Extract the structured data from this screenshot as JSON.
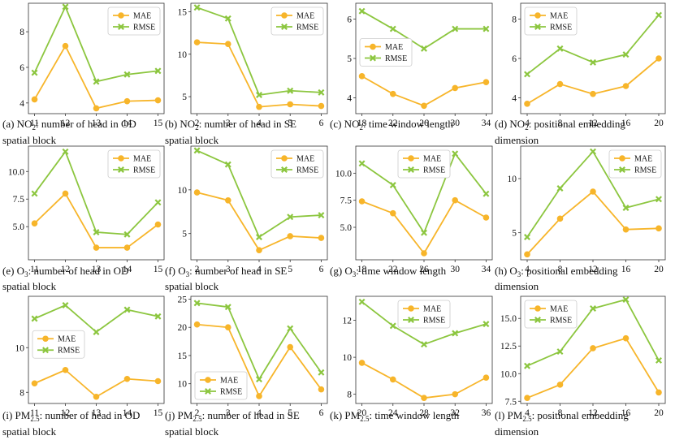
{
  "colors": {
    "mae": "#f7b52a",
    "rmse": "#8cc63f",
    "axis": "#333333",
    "grid": "#dddddd"
  },
  "chart_data": [
    {
      "id": "a",
      "type": "line",
      "x": [
        11,
        12,
        13,
        14,
        15
      ],
      "xticks": [
        11,
        12,
        13,
        14,
        15
      ],
      "ylim": [
        3.4,
        9.6
      ],
      "yticks": [
        4,
        6,
        8
      ],
      "ytick_labels": [
        "4",
        "6",
        "8"
      ],
      "legend": "top-right",
      "series": [
        {
          "name": "MAE",
          "values": [
            4.2,
            7.2,
            3.7,
            4.1,
            4.15
          ]
        },
        {
          "name": "RMSE",
          "values": [
            5.7,
            9.4,
            5.2,
            5.6,
            5.8
          ]
        }
      ],
      "caption": [
        "(a) NO",
        "2",
        ": number of head in OD",
        "spatial block"
      ]
    },
    {
      "id": "b",
      "type": "line",
      "x": [
        2,
        3,
        4,
        5,
        6
      ],
      "xticks": [
        2,
        3,
        4,
        5,
        6
      ],
      "ylim": [
        3.0,
        16.0
      ],
      "yticks": [
        5,
        10,
        15
      ],
      "ytick_labels": [
        "5",
        "10",
        "15"
      ],
      "legend": "top-right",
      "series": [
        {
          "name": "MAE",
          "values": [
            11.4,
            11.2,
            3.8,
            4.1,
            3.9
          ]
        },
        {
          "name": "RMSE",
          "values": [
            15.5,
            14.2,
            5.2,
            5.7,
            5.5
          ]
        }
      ],
      "caption": [
        "(b) NO",
        "2",
        ": number of head in SE",
        "spatial block"
      ]
    },
    {
      "id": "c",
      "type": "line",
      "x": [
        18,
        22,
        26,
        30,
        34
      ],
      "xticks": [
        18,
        22,
        26,
        30,
        34
      ],
      "ylim": [
        3.6,
        6.4
      ],
      "yticks": [
        4,
        5,
        6
      ],
      "ytick_labels": [
        "4",
        "5",
        "6"
      ],
      "legend": "middle-left",
      "series": [
        {
          "name": "MAE",
          "values": [
            4.55,
            4.1,
            3.8,
            4.25,
            4.4
          ]
        },
        {
          "name": "RMSE",
          "values": [
            6.2,
            5.75,
            5.25,
            5.75,
            5.75
          ]
        }
      ],
      "caption": [
        "(c) NO",
        "2",
        ": time window length",
        ""
      ]
    },
    {
      "id": "d",
      "type": "line",
      "x": [
        4,
        8,
        12,
        16,
        20
      ],
      "xticks": [
        4,
        8,
        12,
        16,
        20
      ],
      "ylim": [
        3.2,
        8.8
      ],
      "yticks": [
        4,
        6,
        8
      ],
      "ytick_labels": [
        "4",
        "6",
        "8"
      ],
      "legend": "top-left",
      "series": [
        {
          "name": "MAE",
          "values": [
            3.7,
            4.7,
            4.2,
            4.6,
            6.0
          ]
        },
        {
          "name": "RMSE",
          "values": [
            5.2,
            6.5,
            5.8,
            6.2,
            8.2
          ]
        }
      ],
      "caption": [
        "(d) NO",
        "2",
        ": positional embedding",
        "dimension"
      ]
    },
    {
      "id": "e",
      "type": "line",
      "x": [
        11,
        12,
        13,
        14,
        15
      ],
      "xticks": [
        11,
        12,
        13,
        14,
        15
      ],
      "ylim": [
        2.0,
        12.3
      ],
      "yticks": [
        5.0,
        7.5,
        10.0
      ],
      "ytick_labels": [
        "5.0",
        "7.5",
        "10.0"
      ],
      "legend": "top-right",
      "series": [
        {
          "name": "MAE",
          "values": [
            5.3,
            8.0,
            3.1,
            3.1,
            5.2
          ]
        },
        {
          "name": "RMSE",
          "values": [
            8.0,
            11.8,
            4.5,
            4.3,
            7.2
          ]
        }
      ],
      "caption": [
        "(e) O",
        "3",
        ": number of head in OD",
        "spatial block"
      ]
    },
    {
      "id": "f",
      "type": "line",
      "x": [
        2,
        3,
        4,
        5,
        6
      ],
      "xticks": [
        2,
        3,
        4,
        5,
        6
      ],
      "ylim": [
        2.0,
        15.0
      ],
      "yticks": [
        5,
        10
      ],
      "ytick_labels": [
        "5",
        "10"
      ],
      "legend": "top-right",
      "series": [
        {
          "name": "MAE",
          "values": [
            9.7,
            8.8,
            3.1,
            4.7,
            4.5
          ]
        },
        {
          "name": "RMSE",
          "values": [
            14.5,
            12.9,
            4.6,
            6.9,
            7.1
          ]
        }
      ],
      "caption": [
        "(f) O",
        "3",
        ": number of head in SE",
        "spatial block"
      ]
    },
    {
      "id": "g",
      "type": "line",
      "x": [
        18,
        22,
        26,
        30,
        34
      ],
      "xticks": [
        18,
        22,
        26,
        30,
        34
      ],
      "ylim": [
        2.0,
        12.5
      ],
      "yticks": [
        5.0,
        7.5,
        10.0
      ],
      "ytick_labels": [
        "5.0",
        "7.5",
        "10.0"
      ],
      "legend": "top-center",
      "series": [
        {
          "name": "MAE",
          "values": [
            7.4,
            6.3,
            2.6,
            7.5,
            5.9
          ]
        },
        {
          "name": "RMSE",
          "values": [
            10.9,
            8.9,
            4.5,
            11.8,
            8.1
          ]
        }
      ],
      "caption": [
        "(g) O",
        "3",
        ": time window length",
        ""
      ]
    },
    {
      "id": "h",
      "type": "line",
      "x": [
        4,
        8,
        12,
        16,
        20
      ],
      "xticks": [
        4,
        8,
        12,
        16,
        20
      ],
      "ylim": [
        2.5,
        13.0
      ],
      "yticks": [
        5,
        10
      ],
      "ytick_labels": [
        "5",
        "10"
      ],
      "legend": "top-right",
      "series": [
        {
          "name": "MAE",
          "values": [
            3.0,
            6.3,
            8.8,
            5.3,
            5.4
          ]
        },
        {
          "name": "RMSE",
          "values": [
            4.6,
            9.1,
            12.5,
            7.3,
            8.1
          ]
        }
      ],
      "caption": [
        "(h) O",
        "3",
        ": positional embedding",
        "dimension"
      ]
    },
    {
      "id": "i",
      "type": "line",
      "x": [
        11,
        12,
        13,
        14,
        15
      ],
      "xticks": [
        11,
        12,
        13,
        14,
        15
      ],
      "ylim": [
        7.5,
        12.3
      ],
      "yticks": [
        8,
        10
      ],
      "ytick_labels": [
        "8",
        "10"
      ],
      "legend": "middle-left",
      "series": [
        {
          "name": "MAE",
          "values": [
            8.4,
            9.0,
            7.8,
            8.6,
            8.5
          ]
        },
        {
          "name": "RMSE",
          "values": [
            11.3,
            11.9,
            10.7,
            11.7,
            11.4
          ]
        }
      ],
      "caption": [
        "(i) PM",
        "2.5",
        ": number of head in OD",
        "spatial block"
      ]
    },
    {
      "id": "j",
      "type": "line",
      "x": [
        2,
        3,
        4,
        5,
        6
      ],
      "xticks": [
        2,
        3,
        4,
        5,
        6
      ],
      "ylim": [
        6.5,
        25.5
      ],
      "yticks": [
        10,
        15,
        20,
        25
      ],
      "ytick_labels": [
        "10",
        "15",
        "20",
        "25"
      ],
      "legend": "bottom-left",
      "series": [
        {
          "name": "MAE",
          "values": [
            20.5,
            20.0,
            7.8,
            16.5,
            9.0
          ]
        },
        {
          "name": "RMSE",
          "values": [
            24.3,
            23.6,
            10.8,
            19.8,
            12.0
          ]
        }
      ],
      "caption": [
        "(j) PM",
        "2.5",
        ": number of head in SE",
        "spatial block"
      ]
    },
    {
      "id": "k",
      "type": "line",
      "x": [
        20,
        24,
        28,
        32,
        36
      ],
      "xticks": [
        20,
        24,
        28,
        32,
        36
      ],
      "ylim": [
        7.5,
        13.3
      ],
      "yticks": [
        8,
        10,
        12
      ],
      "ytick_labels": [
        "8",
        "10",
        "12"
      ],
      "legend": "top-center",
      "series": [
        {
          "name": "MAE",
          "values": [
            9.7,
            8.8,
            7.8,
            8.0,
            8.9
          ]
        },
        {
          "name": "RMSE",
          "values": [
            13.0,
            11.7,
            10.7,
            11.3,
            11.8
          ]
        }
      ],
      "caption": [
        "(k) PM",
        "2.5",
        ": time window length",
        ""
      ]
    },
    {
      "id": "l",
      "type": "line",
      "x": [
        4,
        8,
        12,
        16,
        20
      ],
      "xticks": [
        4,
        8,
        12,
        16,
        20
      ],
      "ylim": [
        7.3,
        17.0
      ],
      "yticks": [
        7.5,
        10.0,
        12.5,
        15.0
      ],
      "ytick_labels": [
        "7.5",
        "10.0",
        "12.5",
        "15.0"
      ],
      "legend": "top-left",
      "series": [
        {
          "name": "MAE",
          "values": [
            7.8,
            9.0,
            12.3,
            13.2,
            8.3
          ]
        },
        {
          "name": "RMSE",
          "values": [
            10.7,
            12.0,
            15.9,
            16.7,
            11.2
          ]
        }
      ],
      "caption": [
        "(l) PM",
        "2.5",
        ": positional embedding",
        "dimension"
      ]
    }
  ]
}
